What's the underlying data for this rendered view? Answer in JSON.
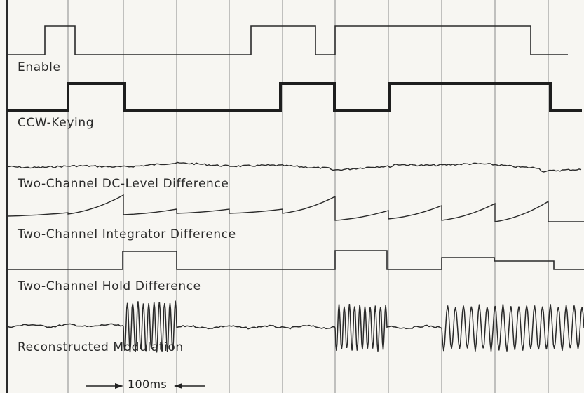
{
  "signals": [
    {
      "id": "enable",
      "label": "Enable"
    },
    {
      "id": "ccw_keying",
      "label": "CCW-Keying"
    },
    {
      "id": "dc_level",
      "label": "Two-Channel  DC-Level Difference"
    },
    {
      "id": "integrator",
      "label": "Two-Channel Integrator Difference"
    },
    {
      "id": "hold",
      "label": "Two-Channel Hold Difference"
    },
    {
      "id": "modulation",
      "label": "Reconstructed  Modulation"
    }
  ],
  "time_scale": {
    "label": "100ms"
  },
  "colors": {
    "background": "#f7f6f2",
    "trace": "#2a2a2a",
    "grid": "#8a8a8a"
  }
}
